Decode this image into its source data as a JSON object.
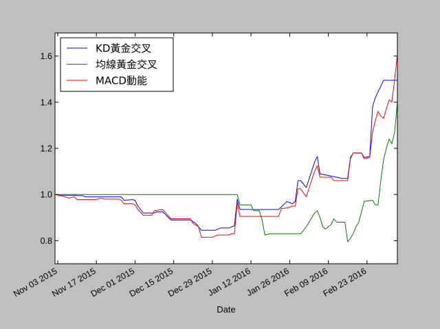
{
  "chart_data": {
    "type": "line",
    "title": "",
    "xlabel": "Date",
    "ylabel": "",
    "xlim": [
      "2015-11-02",
      "2016-03-05"
    ],
    "ylim": [
      0.7,
      1.7
    ],
    "grid": false,
    "legend_position": "top-left",
    "x_ticks": [
      {
        "date": "2015-11-03",
        "label": "Nov 03 2015"
      },
      {
        "date": "2015-11-17",
        "label": "Nov 17 2015"
      },
      {
        "date": "2015-12-01",
        "label": "Dec 01 2015"
      },
      {
        "date": "2015-12-15",
        "label": "Dec 15 2015"
      },
      {
        "date": "2015-12-29",
        "label": "Dec 29 2015"
      },
      {
        "date": "2016-01-12",
        "label": "Jan 12 2016"
      },
      {
        "date": "2016-01-26",
        "label": "Jan 26 2016"
      },
      {
        "date": "2016-02-09",
        "label": "Feb 09 2016"
      },
      {
        "date": "2016-02-23",
        "label": "Feb 23 2016"
      }
    ],
    "y_ticks": [
      {
        "value": 0.8,
        "label": "0.8"
      },
      {
        "value": 1.0,
        "label": "1.0"
      },
      {
        "value": 1.2,
        "label": "1.2"
      },
      {
        "value": 1.4,
        "label": "1.4"
      },
      {
        "value": 1.6,
        "label": "1.6"
      }
    ],
    "series": [
      {
        "name": "KD黃金交叉",
        "color": "#0000ff",
        "points": [
          [
            "2015-11-02",
            1.0
          ],
          [
            "2015-11-04",
            0.997
          ],
          [
            "2015-11-09",
            0.997
          ],
          [
            "2015-11-10",
            0.995
          ],
          [
            "2015-11-12",
            0.995
          ],
          [
            "2015-11-13",
            0.99
          ],
          [
            "2015-11-26",
            0.99
          ],
          [
            "2015-11-27",
            0.975
          ],
          [
            "2015-11-30",
            0.978
          ],
          [
            "2015-12-01",
            0.975
          ],
          [
            "2015-12-02",
            0.95
          ],
          [
            "2015-12-04",
            0.92
          ],
          [
            "2015-12-07",
            0.92
          ],
          [
            "2015-12-08",
            0.92
          ],
          [
            "2015-12-09",
            0.925
          ],
          [
            "2015-12-11",
            0.925
          ],
          [
            "2015-12-14",
            0.89
          ],
          [
            "2015-12-21",
            0.89
          ],
          [
            "2015-12-23",
            0.875
          ],
          [
            "2015-12-24",
            0.86
          ],
          [
            "2015-12-25",
            0.845
          ],
          [
            "2015-12-30",
            0.845
          ],
          [
            "2015-12-31",
            0.85
          ],
          [
            "2016-01-01",
            0.855
          ],
          [
            "2016-01-04",
            0.855
          ],
          [
            "2016-01-05",
            0.86
          ],
          [
            "2016-01-06",
            0.865
          ],
          [
            "2016-01-07",
            0.98
          ],
          [
            "2016-01-08",
            0.935
          ],
          [
            "2016-01-22",
            0.935
          ],
          [
            "2016-01-25",
            0.97
          ],
          [
            "2016-01-26",
            0.965
          ],
          [
            "2016-01-27",
            0.96
          ],
          [
            "2016-01-28",
            0.97
          ],
          [
            "2016-01-29",
            1.06
          ],
          [
            "2016-01-30",
            1.06
          ],
          [
            "2016-02-01",
            1.03
          ],
          [
            "2016-02-04",
            1.14
          ],
          [
            "2016-02-05",
            1.165
          ],
          [
            "2016-02-06",
            1.09
          ],
          [
            "2016-02-14",
            1.07
          ],
          [
            "2016-02-16",
            1.07
          ],
          [
            "2016-02-17",
            1.16
          ],
          [
            "2016-02-18",
            1.18
          ],
          [
            "2016-02-21",
            1.18
          ],
          [
            "2016-02-22",
            1.16
          ],
          [
            "2016-02-24",
            1.165
          ],
          [
            "2016-02-25",
            1.38
          ],
          [
            "2016-02-26",
            1.42
          ],
          [
            "2016-02-29",
            1.495
          ],
          [
            "2016-03-05",
            1.495
          ]
        ]
      },
      {
        "name": "均線黃金交叉",
        "color": "#008000",
        "points": [
          [
            "2015-11-02",
            1.0
          ],
          [
            "2016-01-07",
            1.0
          ],
          [
            "2016-01-08",
            0.955
          ],
          [
            "2016-01-12",
            0.955
          ],
          [
            "2016-01-13",
            0.93
          ],
          [
            "2016-01-15",
            0.93
          ],
          [
            "2016-01-16",
            0.89
          ],
          [
            "2016-01-17",
            0.825
          ],
          [
            "2016-01-19",
            0.83
          ],
          [
            "2016-01-28",
            0.83
          ],
          [
            "2016-01-30",
            0.83
          ],
          [
            "2016-02-01",
            0.86
          ],
          [
            "2016-02-04",
            0.92
          ],
          [
            "2016-02-05",
            0.93
          ],
          [
            "2016-02-06",
            0.9
          ],
          [
            "2016-02-07",
            0.86
          ],
          [
            "2016-02-08",
            0.85
          ],
          [
            "2016-02-10",
            0.87
          ],
          [
            "2016-02-11",
            0.895
          ],
          [
            "2016-02-12",
            0.88
          ],
          [
            "2016-02-13",
            0.88
          ],
          [
            "2016-02-15",
            0.88
          ],
          [
            "2016-02-16",
            0.795
          ],
          [
            "2016-02-17",
            0.81
          ],
          [
            "2016-02-18",
            0.83
          ],
          [
            "2016-02-19",
            0.86
          ],
          [
            "2016-02-20",
            0.88
          ],
          [
            "2016-02-22",
            0.97
          ],
          [
            "2016-02-25",
            0.975
          ],
          [
            "2016-02-26",
            0.955
          ],
          [
            "2016-02-27",
            0.955
          ],
          [
            "2016-02-28",
            1.06
          ],
          [
            "2016-02-29",
            1.15
          ],
          [
            "2016-03-01",
            1.2
          ],
          [
            "2016-03-02",
            1.24
          ],
          [
            "2016-03-03",
            1.22
          ],
          [
            "2016-03-04",
            1.27
          ],
          [
            "2016-03-05",
            1.4
          ],
          [
            "2016-03-05",
            1.455
          ]
        ]
      },
      {
        "name": "MACD動能",
        "color": "#ff0000",
        "points": [
          [
            "2015-11-02",
            1.0
          ],
          [
            "2015-11-04",
            0.995
          ],
          [
            "2015-11-07",
            0.985
          ],
          [
            "2015-11-09",
            0.99
          ],
          [
            "2015-11-10",
            0.978
          ],
          [
            "2015-11-17",
            0.978
          ],
          [
            "2015-11-18",
            0.983
          ],
          [
            "2015-11-19",
            0.983
          ],
          [
            "2015-11-20",
            0.98
          ],
          [
            "2015-11-25",
            0.98
          ],
          [
            "2015-11-26",
            0.975
          ],
          [
            "2015-11-27",
            0.96
          ],
          [
            "2015-11-30",
            0.96
          ],
          [
            "2015-12-01",
            0.955
          ],
          [
            "2015-12-02",
            0.935
          ],
          [
            "2015-12-04",
            0.91
          ],
          [
            "2015-12-07",
            0.91
          ],
          [
            "2015-12-08",
            0.93
          ],
          [
            "2015-12-11",
            0.935
          ],
          [
            "2015-12-14",
            0.895
          ],
          [
            "2015-12-21",
            0.895
          ],
          [
            "2015-12-22",
            0.875
          ],
          [
            "2015-12-24",
            0.86
          ],
          [
            "2015-12-25",
            0.815
          ],
          [
            "2015-12-29",
            0.815
          ],
          [
            "2015-12-30",
            0.82
          ],
          [
            "2015-12-31",
            0.825
          ],
          [
            "2016-01-04",
            0.825
          ],
          [
            "2016-01-05",
            0.83
          ],
          [
            "2016-01-06",
            0.83
          ],
          [
            "2016-01-07",
            0.965
          ],
          [
            "2016-01-08",
            0.905
          ],
          [
            "2016-01-22",
            0.905
          ],
          [
            "2016-01-23",
            0.94
          ],
          [
            "2016-01-24",
            0.94
          ],
          [
            "2016-01-26",
            0.945
          ],
          [
            "2016-01-27",
            0.95
          ],
          [
            "2016-01-28",
            0.95
          ],
          [
            "2016-01-29",
            1.025
          ],
          [
            "2016-01-30",
            1.025
          ],
          [
            "2016-02-01",
            0.99
          ],
          [
            "2016-02-04",
            1.1
          ],
          [
            "2016-02-05",
            1.125
          ],
          [
            "2016-02-06",
            1.075
          ],
          [
            "2016-02-10",
            1.075
          ],
          [
            "2016-02-11",
            1.06
          ],
          [
            "2016-02-15",
            1.06
          ],
          [
            "2016-02-16",
            1.06
          ],
          [
            "2016-02-17",
            1.155
          ],
          [
            "2016-02-18",
            1.18
          ],
          [
            "2016-02-21",
            1.18
          ],
          [
            "2016-02-22",
            1.155
          ],
          [
            "2016-02-24",
            1.16
          ],
          [
            "2016-02-25",
            1.27
          ],
          [
            "2016-02-26",
            1.32
          ],
          [
            "2016-02-27",
            1.36
          ],
          [
            "2016-02-28",
            1.34
          ],
          [
            "2016-02-29",
            1.33
          ],
          [
            "2016-03-01",
            1.37
          ],
          [
            "2016-03-02",
            1.41
          ],
          [
            "2016-03-03",
            1.4
          ],
          [
            "2016-03-04",
            1.5
          ],
          [
            "2016-03-05",
            1.605
          ]
        ]
      }
    ]
  }
}
